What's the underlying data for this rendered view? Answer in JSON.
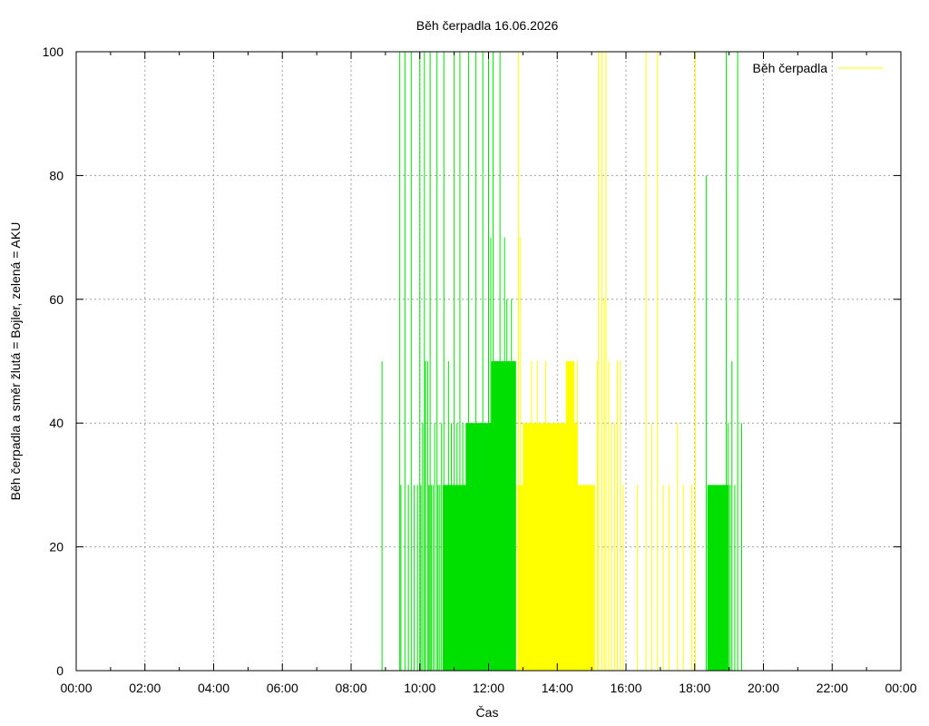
{
  "chart_data": {
    "type": "bar",
    "title": "Běh čerpadla 16.06.2026",
    "xlabel": "Čas",
    "ylabel": "Běh čerpadla a směr žlutá = Bojler, zelená = AKU",
    "ylim": [
      0,
      100
    ],
    "xlim_hours": [
      0,
      24
    ],
    "x_tick_labels": [
      "00:00",
      "02:00",
      "04:00",
      "06:00",
      "08:00",
      "10:00",
      "12:00",
      "14:00",
      "16:00",
      "18:00",
      "20:00",
      "22:00",
      "00:00"
    ],
    "y_tick_labels": [
      "0",
      "20",
      "40",
      "60",
      "80",
      "100"
    ],
    "grid": true,
    "legend_position": "top-right",
    "legend": [
      {
        "label": "Běh čerpadla",
        "color": "#ffff00"
      }
    ],
    "series": [
      {
        "color": "#00e000",
        "segments": [
          [
            "08:54",
            50
          ],
          [
            "09:25",
            100
          ],
          [
            "09:27",
            30
          ],
          [
            "09:34",
            100
          ],
          [
            "09:40",
            30
          ],
          [
            "09:45",
            100
          ],
          [
            "09:50",
            30
          ],
          [
            "09:56",
            30
          ],
          [
            "10:00",
            100
          ],
          [
            "10:02",
            30
          ],
          [
            "10:05",
            40
          ],
          [
            "10:08",
            100
          ],
          [
            "10:10",
            50
          ],
          [
            "10:14",
            50
          ],
          [
            "10:16",
            30
          ],
          [
            "10:18",
            100
          ],
          [
            "10:20",
            30
          ],
          [
            "10:23",
            30
          ],
          [
            "10:26",
            40
          ],
          [
            "10:30",
            100
          ],
          [
            "10:32",
            30
          ],
          [
            "10:35",
            30
          ],
          [
            "10:38",
            40
          ],
          [
            "10:42",
            100
          ],
          [
            "10:45",
            30
          ],
          [
            "10:50",
            50
          ],
          [
            "10:55",
            40
          ],
          [
            "11:00",
            100
          ],
          [
            "11:05",
            40
          ],
          [
            "11:10",
            100
          ],
          [
            "11:15",
            40
          ],
          [
            "11:20",
            30
          ],
          [
            "11:25",
            100
          ],
          [
            "11:30",
            40
          ],
          [
            "11:35",
            30
          ],
          [
            "11:38",
            100
          ],
          [
            "11:42",
            40
          ],
          [
            "11:45",
            40
          ],
          [
            "11:50",
            100
          ],
          [
            "11:55",
            40
          ],
          [
            "12:00",
            100
          ],
          [
            "12:04",
            70
          ],
          [
            "12:08",
            100
          ],
          [
            "12:12",
            50
          ],
          [
            "12:15",
            40
          ],
          [
            "12:20",
            100
          ],
          [
            "12:24",
            50
          ],
          [
            "12:28",
            70
          ],
          [
            "12:32",
            60
          ],
          [
            "12:36",
            50
          ],
          [
            "12:40",
            60
          ],
          [
            "12:45",
            50
          ],
          [
            "18:20",
            80
          ],
          [
            "18:25",
            30
          ],
          [
            "18:30",
            30
          ],
          [
            "18:40",
            30
          ],
          [
            "18:50",
            30
          ],
          [
            "18:55",
            100
          ],
          [
            "18:58",
            40
          ],
          [
            "19:02",
            30
          ],
          [
            "19:05",
            50
          ],
          [
            "19:10",
            30
          ],
          [
            "19:15",
            100
          ],
          [
            "19:22",
            40
          ]
        ],
        "blocks": [
          [
            "10:40",
            "11:45",
            30
          ],
          [
            "11:20",
            "12:10",
            40
          ],
          [
            "12:05",
            "12:40",
            50
          ],
          [
            "12:36",
            "12:48",
            50
          ],
          [
            "18:22",
            "18:50",
            30
          ],
          [
            "18:50",
            "19:00",
            30
          ]
        ]
      },
      {
        "color": "#ffff00",
        "segments": [
          [
            "12:52",
            100
          ],
          [
            "12:55",
            70
          ],
          [
            "13:15",
            50
          ],
          [
            "13:25",
            50
          ],
          [
            "13:40",
            50
          ],
          [
            "13:55",
            40
          ],
          [
            "14:05",
            40
          ],
          [
            "14:25",
            50
          ],
          [
            "14:35",
            50
          ],
          [
            "14:50",
            30
          ],
          [
            "15:05",
            30
          ],
          [
            "15:10",
            50
          ],
          [
            "15:12",
            100
          ],
          [
            "15:18",
            100
          ],
          [
            "15:22",
            60
          ],
          [
            "15:25",
            100
          ],
          [
            "15:30",
            50
          ],
          [
            "15:35",
            40
          ],
          [
            "15:40",
            40
          ],
          [
            "15:45",
            50
          ],
          [
            "15:50",
            50
          ],
          [
            "15:55",
            30
          ],
          [
            "16:20",
            30
          ],
          [
            "16:35",
            100
          ],
          [
            "16:45",
            40
          ],
          [
            "16:55",
            100
          ],
          [
            "17:05",
            30
          ],
          [
            "17:15",
            30
          ],
          [
            "17:30",
            40
          ],
          [
            "17:40",
            30
          ],
          [
            "17:55",
            30
          ],
          [
            "18:01",
            100
          ]
        ],
        "blocks": [
          [
            "12:50",
            "13:10",
            30
          ],
          [
            "13:00",
            "13:25",
            40
          ],
          [
            "13:10",
            "14:30",
            30
          ],
          [
            "13:25",
            "14:10",
            40
          ],
          [
            "14:10",
            "14:35",
            40
          ],
          [
            "14:15",
            "14:30",
            50
          ],
          [
            "14:30",
            "15:05",
            30
          ]
        ]
      }
    ]
  }
}
